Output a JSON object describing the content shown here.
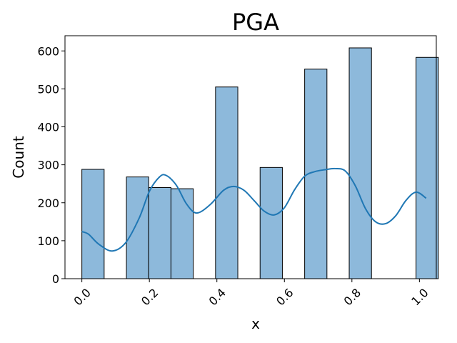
{
  "chart_data": {
    "type": "bar",
    "subtype": "histogram-with-kde",
    "title": "PGA",
    "xlabel": "x",
    "ylabel": "Count",
    "xlim": [
      -0.05,
      1.05
    ],
    "ylim": [
      0,
      640
    ],
    "x_ticks": [
      "0.0",
      "0.2",
      "0.4",
      "0.6",
      "0.8",
      "1.0"
    ],
    "x_tick_values": [
      0.0,
      0.2,
      0.4,
      0.6,
      0.8,
      1.0
    ],
    "y_ticks": [
      "0",
      "100",
      "200",
      "300",
      "400",
      "500",
      "600"
    ],
    "y_tick_values": [
      0,
      100,
      200,
      300,
      400,
      500,
      600
    ],
    "grid": false,
    "bar_color": "#8db9db",
    "bar_edge_color": "#000000",
    "kde_color": "#1f77b4",
    "bins": [
      {
        "x0": 0.0,
        "x1": 0.066,
        "count": 288
      },
      {
        "x0": 0.132,
        "x1": 0.198,
        "count": 268
      },
      {
        "x0": 0.198,
        "x1": 0.264,
        "count": 240
      },
      {
        "x0": 0.264,
        "x1": 0.33,
        "count": 237
      },
      {
        "x0": 0.396,
        "x1": 0.462,
        "count": 505
      },
      {
        "x0": 0.528,
        "x1": 0.594,
        "count": 293
      },
      {
        "x0": 0.66,
        "x1": 0.726,
        "count": 552
      },
      {
        "x0": 0.792,
        "x1": 0.858,
        "count": 608
      },
      {
        "x0": 0.99,
        "x1": 1.056,
        "count": 583
      }
    ],
    "kde": {
      "x": [
        0.0,
        0.02,
        0.05,
        0.09,
        0.13,
        0.17,
        0.2,
        0.23,
        0.25,
        0.28,
        0.31,
        0.34,
        0.38,
        0.42,
        0.45,
        0.48,
        0.51,
        0.54,
        0.57,
        0.6,
        0.63,
        0.66,
        0.69,
        0.72,
        0.75,
        0.78,
        0.81,
        0.84,
        0.87,
        0.9,
        0.93,
        0.96,
        0.99,
        1.02
      ],
      "y": [
        124,
        117,
        91,
        73,
        95,
        160,
        230,
        268,
        272,
        246,
        197,
        173,
        195,
        233,
        243,
        233,
        206,
        178,
        168,
        187,
        234,
        270,
        282,
        287,
        290,
        284,
        245,
        185,
        150,
        145,
        166,
        206,
        228,
        212
      ]
    }
  }
}
